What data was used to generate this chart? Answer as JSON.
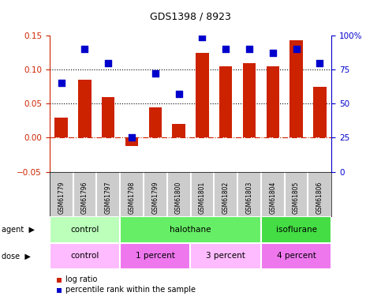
{
  "title": "GDS1398 / 8923",
  "samples": [
    "GSM61779",
    "GSM61796",
    "GSM61797",
    "GSM61798",
    "GSM61799",
    "GSM61800",
    "GSM61801",
    "GSM61802",
    "GSM61803",
    "GSM61804",
    "GSM61805",
    "GSM61806"
  ],
  "log_ratio": [
    0.03,
    0.085,
    0.06,
    -0.012,
    0.044,
    0.02,
    0.125,
    0.105,
    0.11,
    0.105,
    0.143,
    0.075
  ],
  "percentile_rank": [
    65,
    90,
    80,
    25,
    72,
    57,
    99,
    90,
    90,
    87,
    90,
    80
  ],
  "bar_color": "#cc2200",
  "dot_color": "#0000cc",
  "bar_ylim": [
    -0.05,
    0.15
  ],
  "pct_ylim": [
    0,
    100
  ],
  "yticks_left": [
    -0.05,
    0,
    0.05,
    0.1,
    0.15
  ],
  "yticks_right": [
    0,
    25,
    50,
    75,
    100
  ],
  "ytick_labels_right": [
    "0",
    "25",
    "50",
    "75",
    "100%"
  ],
  "hline_y": [
    0.05,
    0.1
  ],
  "zero_line_y": 0.0,
  "agent_groups": [
    {
      "label": "control",
      "start": 0,
      "end": 3,
      "color": "#bbffbb"
    },
    {
      "label": "halothane",
      "start": 3,
      "end": 9,
      "color": "#66ee66"
    },
    {
      "label": "isoflurane",
      "start": 9,
      "end": 12,
      "color": "#44dd44"
    }
  ],
  "dose_groups": [
    {
      "label": "control",
      "start": 0,
      "end": 3,
      "color": "#ffbbff"
    },
    {
      "label": "1 percent",
      "start": 3,
      "end": 6,
      "color": "#ee77ee"
    },
    {
      "label": "3 percent",
      "start": 6,
      "end": 9,
      "color": "#ffbbff"
    },
    {
      "label": "4 percent",
      "start": 9,
      "end": 12,
      "color": "#ee77ee"
    }
  ],
  "legend_items": [
    {
      "label": "log ratio",
      "color": "#cc2200"
    },
    {
      "label": "percentile rank within the sample",
      "color": "#0000cc"
    }
  ],
  "bar_width": 0.55,
  "dot_size": 35,
  "label_bg": "#cccccc"
}
